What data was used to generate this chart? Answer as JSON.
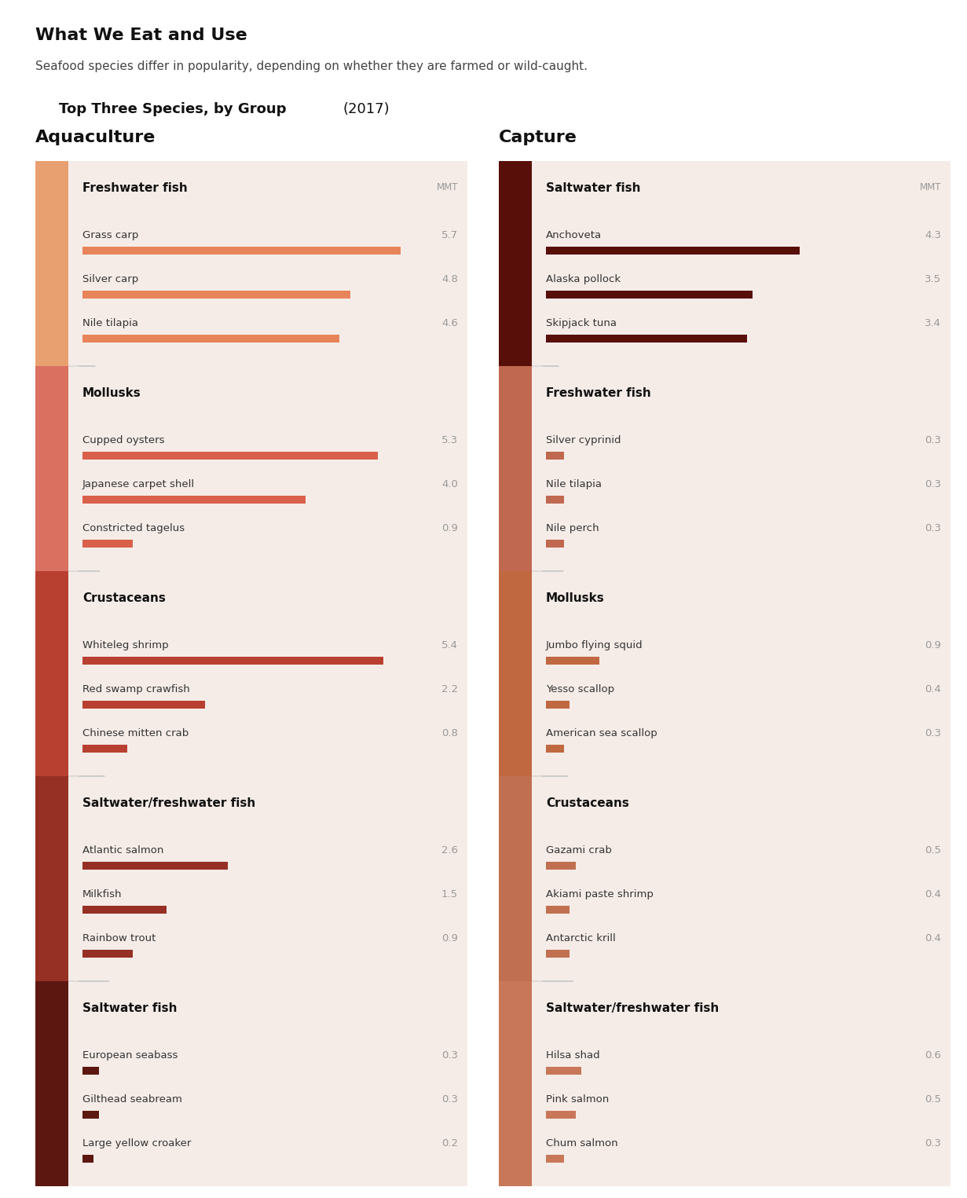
{
  "title": "What We Eat and Use",
  "subtitle": "Seafood species differ in popularity, depending on whether they are farmed or wild-caught.",
  "section_label": "Top Three Species, by Group",
  "section_year": "(2017)",
  "bg_color": "#ffffff",
  "panel_bg": "#f5ece8",
  "aquaculture_label": "Aquaculture",
  "capture_label": "Capture",
  "mmt_label": "MMT",
  "aquaculture_groups": [
    {
      "group": "Freshwater fish",
      "bar_color": "#e8845a",
      "sidebar_color": "#e8a070",
      "species": [
        {
          "name": "Grass carp",
          "value": 5.7
        },
        {
          "name": "Silver carp",
          "value": 4.8
        },
        {
          "name": "Nile tilapia",
          "value": 4.6
        }
      ]
    },
    {
      "group": "Mollusks",
      "bar_color": "#d9604a",
      "sidebar_color": "#d97060",
      "species": [
        {
          "name": "Cupped oysters",
          "value": 5.3
        },
        {
          "name": "Japanese carpet shell",
          "value": 4.0
        },
        {
          "name": "Constricted tagelus",
          "value": 0.9
        }
      ]
    },
    {
      "group": "Crustaceans",
      "bar_color": "#b84030",
      "sidebar_color": "#b84030",
      "species": [
        {
          "name": "Whiteleg shrimp",
          "value": 5.4
        },
        {
          "name": "Red swamp crawfish",
          "value": 2.2
        },
        {
          "name": "Chinese mitten crab",
          "value": 0.8
        }
      ]
    },
    {
      "group": "Saltwater/freshwater fish",
      "bar_color": "#963025",
      "sidebar_color": "#963025",
      "species": [
        {
          "name": "Atlantic salmon",
          "value": 2.6
        },
        {
          "name": "Milkfish",
          "value": 1.5
        },
        {
          "name": "Rainbow trout",
          "value": 0.9
        }
      ]
    },
    {
      "group": "Saltwater fish",
      "bar_color": "#5c1810",
      "sidebar_color": "#5c1810",
      "species": [
        {
          "name": "European seabass",
          "value": 0.3
        },
        {
          "name": "Gilthead seabream",
          "value": 0.3
        },
        {
          "name": "Large yellow croaker",
          "value": 0.2
        }
      ]
    }
  ],
  "capture_groups": [
    {
      "group": "Saltwater fish",
      "bar_color": "#580f0a",
      "sidebar_color": "#580f0a",
      "species": [
        {
          "name": "Anchoveta",
          "value": 4.3
        },
        {
          "name": "Alaska pollock",
          "value": 3.5
        },
        {
          "name": "Skipjack tuna",
          "value": 3.4
        }
      ]
    },
    {
      "group": "Freshwater fish",
      "bar_color": "#c06850",
      "sidebar_color": "#c06850",
      "species": [
        {
          "name": "Silver cyprinid",
          "value": 0.3
        },
        {
          "name": "Nile tilapia",
          "value": 0.3
        },
        {
          "name": "Nile perch",
          "value": 0.3
        }
      ]
    },
    {
      "group": "Mollusks",
      "bar_color": "#c06840",
      "sidebar_color": "#c06840",
      "species": [
        {
          "name": "Jumbo flying squid",
          "value": 0.9
        },
        {
          "name": "Yesso scallop",
          "value": 0.4
        },
        {
          "name": "American sea scallop",
          "value": 0.3
        }
      ]
    },
    {
      "group": "Crustaceans",
      "bar_color": "#c07050",
      "sidebar_color": "#c07050",
      "species": [
        {
          "name": "Gazami crab",
          "value": 0.5
        },
        {
          "name": "Akiami paste shrimp",
          "value": 0.4
        },
        {
          "name": "Antarctic krill",
          "value": 0.4
        }
      ]
    },
    {
      "group": "Saltwater/freshwater fish",
      "bar_color": "#c87858",
      "sidebar_color": "#c87858",
      "species": [
        {
          "name": "Hilsa shad",
          "value": 0.6
        },
        {
          "name": "Pink salmon",
          "value": 0.5
        },
        {
          "name": "Chum salmon",
          "value": 0.3
        }
      ]
    }
  ],
  "max_bar_value": 6.0,
  "value_color": "#999999",
  "species_color": "#333333",
  "group_text_color": "#111111",
  "connector_color": "#cccccc"
}
